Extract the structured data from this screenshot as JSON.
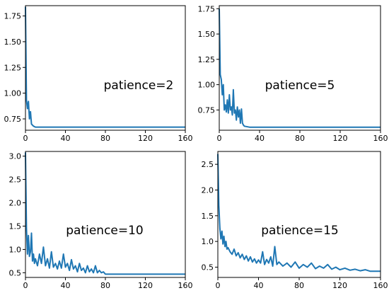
{
  "chart_data": [
    {
      "type": "line",
      "annotation": "patience=2",
      "xlim": [
        0,
        160
      ],
      "ylim": [
        0.64,
        1.85
      ],
      "xticks": [
        0,
        40,
        80,
        120,
        160
      ],
      "yticks": [
        0.75,
        1.0,
        1.25,
        1.5,
        1.75
      ],
      "ytick_labels": [
        "0.75",
        "1.00",
        "1.25",
        "1.50",
        "1.75"
      ],
      "series": [
        {
          "color": "#1f77b4",
          "x": [
            0,
            1,
            2,
            3,
            4,
            5,
            6,
            8,
            10,
            20,
            40,
            80,
            120,
            160
          ],
          "y": [
            1.84,
            0.93,
            0.85,
            0.92,
            0.75,
            0.82,
            0.7,
            0.68,
            0.67,
            0.67,
            0.67,
            0.67,
            0.67,
            0.67
          ]
        }
      ]
    },
    {
      "type": "line",
      "annotation": "patience=5",
      "xlim": [
        0,
        160
      ],
      "ylim": [
        0.55,
        1.78
      ],
      "xticks": [
        0,
        40,
        80,
        120,
        160
      ],
      "yticks": [
        0.75,
        1.0,
        1.25,
        1.5,
        1.75
      ],
      "ytick_labels": [
        "0.75",
        "1.00",
        "1.25",
        "1.50",
        "1.75"
      ],
      "series": [
        {
          "color": "#1f77b4",
          "x": [
            0,
            1,
            2,
            3,
            4,
            5,
            6,
            7,
            8,
            9,
            10,
            11,
            12,
            13,
            14,
            15,
            16,
            17,
            18,
            19,
            20,
            21,
            22,
            23,
            24,
            25,
            30,
            40,
            80,
            120,
            160
          ],
          "y": [
            1.75,
            1.1,
            1.05,
            0.9,
            1.0,
            0.75,
            0.8,
            0.73,
            0.85,
            0.72,
            0.9,
            0.75,
            0.78,
            0.7,
            0.95,
            0.72,
            0.75,
            0.65,
            0.78,
            0.68,
            0.75,
            0.62,
            0.76,
            0.62,
            0.6,
            0.59,
            0.58,
            0.58,
            0.58,
            0.58,
            0.58
          ]
        }
      ]
    },
    {
      "type": "line",
      "annotation": "patience=10",
      "xlim": [
        0,
        160
      ],
      "ylim": [
        0.4,
        3.1
      ],
      "xticks": [
        0,
        40,
        80,
        120,
        160
      ],
      "yticks": [
        0.5,
        1.0,
        1.5,
        2.0,
        2.5,
        3.0
      ],
      "ytick_labels": [
        "0.5",
        "1.0",
        "1.5",
        "2.0",
        "2.5",
        "3.0"
      ],
      "series": [
        {
          "color": "#1f77b4",
          "x": [
            0,
            1,
            2,
            3,
            4,
            5,
            6,
            7,
            8,
            9,
            10,
            12,
            14,
            16,
            18,
            20,
            22,
            24,
            26,
            28,
            30,
            32,
            34,
            36,
            38,
            40,
            42,
            44,
            46,
            48,
            50,
            52,
            54,
            56,
            58,
            60,
            62,
            64,
            66,
            68,
            70,
            72,
            74,
            76,
            78,
            80,
            90,
            100,
            120,
            140,
            160
          ],
          "y": [
            3.08,
            1.45,
            0.9,
            1.3,
            0.85,
            0.95,
            1.35,
            0.75,
            0.9,
            0.7,
            0.8,
            0.65,
            0.9,
            0.7,
            1.05,
            0.65,
            0.8,
            0.6,
            0.95,
            0.62,
            0.7,
            0.58,
            0.75,
            0.6,
            0.9,
            0.62,
            0.7,
            0.55,
            0.78,
            0.58,
            0.65,
            0.52,
            0.7,
            0.55,
            0.6,
            0.5,
            0.65,
            0.52,
            0.58,
            0.5,
            0.65,
            0.5,
            0.55,
            0.5,
            0.52,
            0.47,
            0.47,
            0.47,
            0.47,
            0.47,
            0.47
          ]
        }
      ]
    },
    {
      "type": "line",
      "annotation": "patience=15",
      "xlim": [
        0,
        160
      ],
      "ylim": [
        0.3,
        2.75
      ],
      "xticks": [
        0,
        40,
        80,
        120,
        160
      ],
      "yticks": [
        0.5,
        1.0,
        1.5,
        2.0,
        2.5
      ],
      "ytick_labels": [
        "0.5",
        "1.0",
        "1.5",
        "2.0",
        "2.5"
      ],
      "series": [
        {
          "color": "#1f77b4",
          "x": [
            0,
            1,
            2,
            3,
            4,
            5,
            6,
            7,
            8,
            9,
            10,
            12,
            14,
            16,
            18,
            20,
            22,
            24,
            26,
            28,
            30,
            32,
            34,
            36,
            38,
            40,
            42,
            44,
            46,
            48,
            50,
            52,
            54,
            56,
            58,
            60,
            64,
            68,
            72,
            76,
            80,
            84,
            88,
            92,
            96,
            100,
            104,
            108,
            112,
            116,
            120,
            125,
            130,
            135,
            140,
            145,
            150,
            155,
            160
          ],
          "y": [
            2.7,
            1.7,
            1.25,
            1.05,
            1.2,
            0.95,
            1.1,
            0.9,
            1.0,
            0.85,
            0.88,
            0.8,
            0.75,
            0.85,
            0.72,
            0.78,
            0.68,
            0.75,
            0.65,
            0.72,
            0.62,
            0.7,
            0.6,
            0.66,
            0.58,
            0.64,
            0.58,
            0.8,
            0.55,
            0.65,
            0.58,
            0.7,
            0.52,
            0.9,
            0.55,
            0.6,
            0.52,
            0.58,
            0.5,
            0.6,
            0.48,
            0.55,
            0.5,
            0.58,
            0.47,
            0.52,
            0.48,
            0.55,
            0.46,
            0.5,
            0.45,
            0.48,
            0.44,
            0.46,
            0.43,
            0.45,
            0.42,
            0.42,
            0.42
          ]
        }
      ]
    }
  ]
}
